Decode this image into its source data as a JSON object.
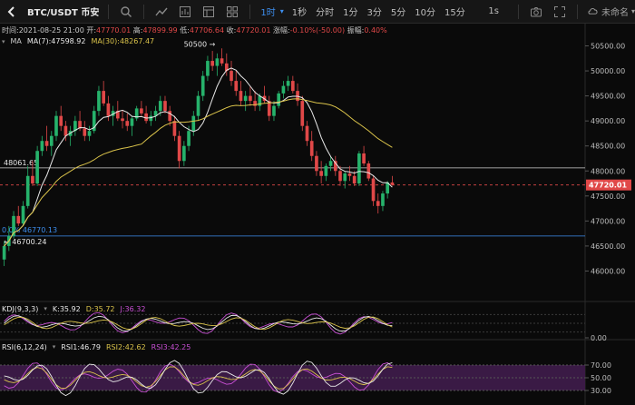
{
  "toolbar": {
    "symbol": "BTC/USDT 币安",
    "timeframes": [
      "1时",
      "1秒",
      "分时",
      "1分",
      "3分",
      "5分",
      "10分",
      "15分"
    ],
    "active_timeframe": "1时",
    "refresh": "1s",
    "theme": "未命名"
  },
  "info": {
    "time_label": "时间:",
    "time": "2021-08-25 21:00",
    "open_label": "开:",
    "open": "47770.01",
    "high_label": "高:",
    "high": "47899.99",
    "low_label": "低:",
    "low": "47706.64",
    "close_label": "收:",
    "close": "47720.01",
    "change_label": "涨幅:",
    "change": "-0.10%(-50.00)",
    "amp_label": "振幅:",
    "amp": "0.40%"
  },
  "ma": {
    "title": "MA",
    "ma7": "MA(7):47598.92",
    "ma30": "MA(30):48267.47"
  },
  "kdj": {
    "title": "KDJ(9,3,3)",
    "k": "K:35.92",
    "d": "D:35.72",
    "j": "J:36.32"
  },
  "rsi": {
    "title": "RSI(6,12,24)",
    "rsi1": "RSI1:46.79",
    "rsi2": "RSI2:42.62",
    "rsi3": "RSI3:42.25"
  },
  "price_axis": [
    "50500.00",
    "50000.00",
    "49500.00",
    "49000.00",
    "48500.00",
    "48000.00",
    "47500.00",
    "47000.00",
    "46500.00",
    "46000.00"
  ],
  "kdj_axis": [
    "0.00"
  ],
  "rsi_axis": [
    "70.00",
    "50.00",
    "30.00"
  ],
  "annotations": {
    "current_price": "47720.01",
    "hline_upper": "48061.65",
    "hline_lower_label": "46700.24",
    "fib_label": "0.0% 46770.13",
    "peak_label": "50500"
  },
  "colors": {
    "up": "#26b26b",
    "down": "#e04848",
    "ma7": "#e8e8e8",
    "ma30": "#d9c24a",
    "active": "#3d8ff0",
    "kdj_k": "#e8e8e8",
    "kdj_d": "#d9c24a",
    "kdj_j": "#c84fd4",
    "rsi_fill": "#3a1a45"
  },
  "chart_data": {
    "type": "candlestick",
    "price_range": [
      45500,
      50800
    ],
    "candles": [
      [
        46230,
        46600,
        46100,
        46500
      ],
      [
        46500,
        46900,
        46400,
        46700
      ],
      [
        46700,
        47200,
        46650,
        47100
      ],
      [
        47100,
        47300,
        46900,
        46950
      ],
      [
        46950,
        47400,
        46900,
        47300
      ],
      [
        47300,
        48100,
        47250,
        47900
      ],
      [
        47900,
        48200,
        47700,
        47750
      ],
      [
        47750,
        48500,
        47700,
        48400
      ],
      [
        48400,
        48700,
        48300,
        48600
      ],
      [
        48600,
        48900,
        48400,
        48500
      ],
      [
        48500,
        48800,
        48300,
        48700
      ],
      [
        48700,
        49200,
        48600,
        49100
      ],
      [
        49100,
        49300,
        48800,
        48900
      ],
      [
        48900,
        49000,
        48600,
        48700
      ],
      [
        48700,
        48900,
        48500,
        48800
      ],
      [
        48800,
        49100,
        48700,
        49000
      ],
      [
        49000,
        49200,
        48800,
        48850
      ],
      [
        48850,
        49000,
        48600,
        48700
      ],
      [
        48700,
        48900,
        48600,
        48800
      ],
      [
        48800,
        49300,
        48750,
        49200
      ],
      [
        49200,
        49700,
        49100,
        49600
      ],
      [
        49600,
        49800,
        49300,
        49350
      ],
      [
        49350,
        49500,
        49000,
        49100
      ],
      [
        49100,
        49300,
        48900,
        49200
      ],
      [
        49200,
        49400,
        49000,
        49050
      ],
      [
        49050,
        49200,
        48850,
        49000
      ],
      [
        49000,
        49150,
        48800,
        48900
      ],
      [
        48900,
        49100,
        48700,
        49050
      ],
      [
        49050,
        49300,
        49000,
        49250
      ],
      [
        49250,
        49400,
        49100,
        49150
      ],
      [
        49150,
        49300,
        48950,
        49000
      ],
      [
        49000,
        49200,
        48900,
        49100
      ],
      [
        49100,
        49300,
        49000,
        49200
      ],
      [
        49200,
        49500,
        49100,
        49400
      ],
      [
        49400,
        49500,
        49150,
        49200
      ],
      [
        49200,
        49300,
        48900,
        49000
      ],
      [
        49000,
        49100,
        48600,
        48700
      ],
      [
        48700,
        48800,
        48050,
        48200
      ],
      [
        48200,
        48600,
        48100,
        48500
      ],
      [
        48500,
        48900,
        48400,
        48800
      ],
      [
        48800,
        49200,
        48700,
        49100
      ],
      [
        49100,
        49600,
        49000,
        49500
      ],
      [
        49500,
        50000,
        49400,
        49900
      ],
      [
        49900,
        50300,
        49800,
        50200
      ],
      [
        50200,
        50400,
        50000,
        50100
      ],
      [
        50100,
        50350,
        49900,
        50250
      ],
      [
        50250,
        50450,
        50100,
        50150
      ],
      [
        50150,
        50350,
        49900,
        50000
      ],
      [
        50000,
        50200,
        49700,
        49800
      ],
      [
        49800,
        50000,
        49500,
        49600
      ],
      [
        49600,
        49800,
        49300,
        49400
      ],
      [
        49400,
        49600,
        49200,
        49500
      ],
      [
        49500,
        49700,
        49300,
        49400
      ],
      [
        49400,
        49600,
        49200,
        49300
      ],
      [
        49300,
        49550,
        49200,
        49500
      ],
      [
        49500,
        49700,
        49350,
        49400
      ],
      [
        49400,
        49500,
        49000,
        49100
      ],
      [
        49100,
        49400,
        49000,
        49300
      ],
      [
        49300,
        49600,
        49250,
        49550
      ],
      [
        49550,
        49800,
        49450,
        49700
      ],
      [
        49700,
        49900,
        49600,
        49800
      ],
      [
        49800,
        49900,
        49550,
        49600
      ],
      [
        49600,
        49750,
        49300,
        49400
      ],
      [
        49400,
        49500,
        48800,
        48900
      ],
      [
        48900,
        49000,
        48500,
        48600
      ],
      [
        48600,
        48800,
        48200,
        48300
      ],
      [
        48300,
        48400,
        47900,
        48000
      ],
      [
        48000,
        48200,
        47750,
        47900
      ],
      [
        47900,
        48150,
        47800,
        48100
      ],
      [
        48100,
        48300,
        48000,
        48200
      ],
      [
        48200,
        48300,
        47900,
        48000
      ],
      [
        48000,
        48100,
        47700,
        47800
      ],
      [
        47800,
        48000,
        47650,
        47950
      ],
      [
        47950,
        48100,
        47800,
        47900
      ],
      [
        47900,
        48000,
        47700,
        47750
      ],
      [
        47750,
        48400,
        47700,
        48350
      ],
      [
        48350,
        48500,
        48100,
        48150
      ],
      [
        48150,
        48200,
        47800,
        47850
      ],
      [
        47850,
        47900,
        47300,
        47400
      ],
      [
        47400,
        47550,
        47150,
        47300
      ],
      [
        47300,
        47600,
        47200,
        47550
      ],
      [
        47550,
        47800,
        47450,
        47770
      ],
      [
        47770,
        47900,
        47706,
        47720
      ]
    ],
    "ma7": "MA(7):47598.92",
    "ma30": "MA(30):48267.47",
    "last_price": 47720.01,
    "horizontal_lines": [
      48061.65,
      46700.24
    ]
  }
}
